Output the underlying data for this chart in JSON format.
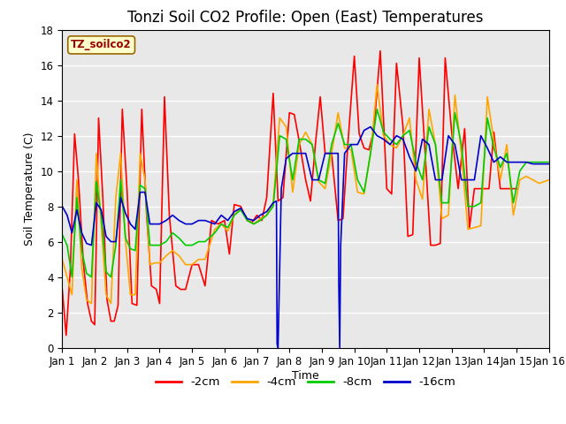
{
  "title": "Tonzi Soil CO2 Profile: Open (East) Temperatures",
  "xlabel": "Time",
  "ylabel": "Soil Temperature (C)",
  "ylim": [
    0,
    18
  ],
  "xlim": [
    0,
    15
  ],
  "xtick_labels": [
    "Jan 1",
    "Jan 2",
    "Jan 3",
    "Jan 4",
    "Jan 5",
    "Jan 6",
    "Jan 7",
    "Jan 8",
    "Jan 9",
    "Jan 10",
    "Jan 11",
    "Jan 12",
    "Jan 13",
    "Jan 14",
    "Jan 15",
    "Jan 16"
  ],
  "ytick_vals": [
    0,
    2,
    4,
    6,
    8,
    10,
    12,
    14,
    16,
    18
  ],
  "legend_title": "TZ_soilco2",
  "series": {
    "-2cm": {
      "color": "#ff0000",
      "points": [
        [
          0.0,
          3.3
        ],
        [
          0.12,
          0.7
        ],
        [
          0.25,
          4.5
        ],
        [
          0.38,
          12.1
        ],
        [
          0.5,
          9.5
        ],
        [
          0.65,
          4.8
        ],
        [
          0.78,
          2.5
        ],
        [
          0.9,
          1.5
        ],
        [
          1.0,
          1.3
        ],
        [
          1.12,
          13.0
        ],
        [
          1.25,
          8.5
        ],
        [
          1.38,
          2.7
        ],
        [
          1.5,
          1.5
        ],
        [
          1.6,
          1.5
        ],
        [
          1.72,
          2.4
        ],
        [
          1.85,
          13.5
        ],
        [
          2.0,
          8.8
        ],
        [
          2.15,
          2.5
        ],
        [
          2.3,
          2.4
        ],
        [
          2.45,
          13.5
        ],
        [
          2.6,
          7.5
        ],
        [
          2.75,
          3.5
        ],
        [
          2.9,
          3.3
        ],
        [
          3.0,
          2.5
        ],
        [
          3.15,
          14.2
        ],
        [
          3.3,
          7.5
        ],
        [
          3.5,
          3.5
        ],
        [
          3.65,
          3.3
        ],
        [
          3.8,
          3.3
        ],
        [
          4.0,
          4.7
        ],
        [
          4.2,
          4.7
        ],
        [
          4.4,
          3.5
        ],
        [
          4.6,
          7.2
        ],
        [
          4.8,
          7.0
        ],
        [
          5.0,
          7.2
        ],
        [
          5.15,
          5.3
        ],
        [
          5.3,
          8.1
        ],
        [
          5.5,
          8.0
        ],
        [
          5.7,
          7.2
        ],
        [
          5.85,
          7.1
        ],
        [
          6.0,
          7.5
        ],
        [
          6.15,
          7.2
        ],
        [
          6.3,
          8.5
        ],
        [
          6.5,
          14.4
        ],
        [
          6.65,
          8.3
        ],
        [
          6.8,
          8.5
        ],
        [
          7.0,
          13.3
        ],
        [
          7.15,
          13.2
        ],
        [
          7.3,
          11.7
        ],
        [
          7.5,
          9.5
        ],
        [
          7.65,
          8.3
        ],
        [
          7.8,
          11.5
        ],
        [
          7.95,
          14.2
        ],
        [
          8.1,
          11.0
        ],
        [
          8.3,
          11.0
        ],
        [
          8.5,
          7.2
        ],
        [
          8.65,
          7.3
        ],
        [
          8.8,
          11.5
        ],
        [
          9.0,
          16.5
        ],
        [
          9.15,
          12.1
        ],
        [
          9.3,
          11.3
        ],
        [
          9.45,
          11.2
        ],
        [
          9.6,
          12.3
        ],
        [
          9.8,
          16.8
        ],
        [
          10.0,
          9.0
        ],
        [
          10.15,
          8.7
        ],
        [
          10.3,
          16.1
        ],
        [
          10.5,
          12.5
        ],
        [
          10.65,
          6.3
        ],
        [
          10.8,
          6.4
        ],
        [
          11.0,
          16.4
        ],
        [
          11.2,
          10.5
        ],
        [
          11.35,
          5.8
        ],
        [
          11.5,
          5.8
        ],
        [
          11.65,
          5.9
        ],
        [
          11.8,
          16.4
        ],
        [
          12.0,
          12.2
        ],
        [
          12.2,
          9.0
        ],
        [
          12.4,
          12.4
        ],
        [
          12.55,
          6.8
        ],
        [
          12.7,
          9.0
        ],
        [
          12.85,
          9.0
        ],
        [
          13.0,
          9.0
        ],
        [
          13.15,
          9.0
        ],
        [
          13.3,
          12.2
        ],
        [
          13.5,
          9.0
        ],
        [
          14.0,
          9.0
        ]
      ]
    },
    "-4cm": {
      "color": "#ffa500",
      "points": [
        [
          0.0,
          5.0
        ],
        [
          0.15,
          4.0
        ],
        [
          0.3,
          3.0
        ],
        [
          0.45,
          9.5
        ],
        [
          0.6,
          4.5
        ],
        [
          0.75,
          2.7
        ],
        [
          0.9,
          2.5
        ],
        [
          1.05,
          11.0
        ],
        [
          1.2,
          7.0
        ],
        [
          1.35,
          3.0
        ],
        [
          1.5,
          2.5
        ],
        [
          1.65,
          8.5
        ],
        [
          1.8,
          11.0
        ],
        [
          1.95,
          6.0
        ],
        [
          2.1,
          3.0
        ],
        [
          2.25,
          3.0
        ],
        [
          2.4,
          11.0
        ],
        [
          2.55,
          9.5
        ],
        [
          2.7,
          4.7
        ],
        [
          2.85,
          4.8
        ],
        [
          3.0,
          4.8
        ],
        [
          3.2,
          5.2
        ],
        [
          3.4,
          5.5
        ],
        [
          3.6,
          5.2
        ],
        [
          3.8,
          4.7
        ],
        [
          4.0,
          4.7
        ],
        [
          4.2,
          5.0
        ],
        [
          4.4,
          5.0
        ],
        [
          4.7,
          6.7
        ],
        [
          4.9,
          7.0
        ],
        [
          5.1,
          6.6
        ],
        [
          5.3,
          7.5
        ],
        [
          5.5,
          7.9
        ],
        [
          5.7,
          7.2
        ],
        [
          5.9,
          7.0
        ],
        [
          6.1,
          7.3
        ],
        [
          6.3,
          7.5
        ],
        [
          6.5,
          8.2
        ],
        [
          6.7,
          13.0
        ],
        [
          6.9,
          12.5
        ],
        [
          7.1,
          8.8
        ],
        [
          7.3,
          11.5
        ],
        [
          7.5,
          12.2
        ],
        [
          7.7,
          11.5
        ],
        [
          7.9,
          9.4
        ],
        [
          8.1,
          9.0
        ],
        [
          8.3,
          11.0
        ],
        [
          8.5,
          13.3
        ],
        [
          8.7,
          11.3
        ],
        [
          8.9,
          11.2
        ],
        [
          9.1,
          8.8
        ],
        [
          9.3,
          8.7
        ],
        [
          9.5,
          11.0
        ],
        [
          9.7,
          14.9
        ],
        [
          9.9,
          12.0
        ],
        [
          10.1,
          11.5
        ],
        [
          10.3,
          11.3
        ],
        [
          10.5,
          12.0
        ],
        [
          10.7,
          13.0
        ],
        [
          10.9,
          9.5
        ],
        [
          11.1,
          8.4
        ],
        [
          11.3,
          13.5
        ],
        [
          11.5,
          11.5
        ],
        [
          11.7,
          7.3
        ],
        [
          11.9,
          7.5
        ],
        [
          12.1,
          14.3
        ],
        [
          12.3,
          11.0
        ],
        [
          12.5,
          6.7
        ],
        [
          12.7,
          6.8
        ],
        [
          12.9,
          6.9
        ],
        [
          13.1,
          14.2
        ],
        [
          13.3,
          11.7
        ],
        [
          13.5,
          9.5
        ],
        [
          13.7,
          11.5
        ],
        [
          13.9,
          7.5
        ],
        [
          14.1,
          9.5
        ],
        [
          14.3,
          9.7
        ],
        [
          14.5,
          9.5
        ],
        [
          14.7,
          9.3
        ],
        [
          15.0,
          9.5
        ]
      ]
    },
    "-8cm": {
      "color": "#00cc00",
      "points": [
        [
          0.0,
          6.4
        ],
        [
          0.15,
          5.8
        ],
        [
          0.3,
          4.0
        ],
        [
          0.45,
          8.5
        ],
        [
          0.6,
          5.5
        ],
        [
          0.75,
          4.2
        ],
        [
          0.9,
          4.0
        ],
        [
          1.05,
          9.4
        ],
        [
          1.2,
          7.5
        ],
        [
          1.35,
          4.3
        ],
        [
          1.5,
          4.0
        ],
        [
          1.65,
          5.8
        ],
        [
          1.8,
          9.5
        ],
        [
          1.95,
          6.2
        ],
        [
          2.1,
          5.6
        ],
        [
          2.25,
          5.5
        ],
        [
          2.4,
          9.2
        ],
        [
          2.55,
          9.0
        ],
        [
          2.7,
          5.8
        ],
        [
          2.85,
          5.8
        ],
        [
          3.0,
          5.8
        ],
        [
          3.2,
          6.0
        ],
        [
          3.4,
          6.5
        ],
        [
          3.6,
          6.2
        ],
        [
          3.8,
          5.8
        ],
        [
          4.0,
          5.8
        ],
        [
          4.2,
          6.0
        ],
        [
          4.4,
          6.0
        ],
        [
          4.7,
          6.5
        ],
        [
          4.9,
          7.0
        ],
        [
          5.1,
          6.8
        ],
        [
          5.3,
          7.5
        ],
        [
          5.5,
          7.8
        ],
        [
          5.7,
          7.2
        ],
        [
          5.9,
          7.0
        ],
        [
          6.1,
          7.2
        ],
        [
          6.3,
          7.5
        ],
        [
          6.5,
          8.0
        ],
        [
          6.7,
          12.0
        ],
        [
          6.9,
          11.8
        ],
        [
          7.1,
          9.5
        ],
        [
          7.3,
          11.8
        ],
        [
          7.5,
          11.8
        ],
        [
          7.7,
          11.5
        ],
        [
          7.9,
          9.5
        ],
        [
          8.1,
          9.3
        ],
        [
          8.3,
          11.5
        ],
        [
          8.5,
          12.7
        ],
        [
          8.7,
          11.5
        ],
        [
          8.9,
          11.5
        ],
        [
          9.1,
          9.5
        ],
        [
          9.3,
          8.8
        ],
        [
          9.5,
          11.0
        ],
        [
          9.7,
          13.5
        ],
        [
          9.9,
          12.2
        ],
        [
          10.1,
          11.8
        ],
        [
          10.3,
          11.5
        ],
        [
          10.5,
          12.0
        ],
        [
          10.7,
          12.3
        ],
        [
          10.9,
          10.5
        ],
        [
          11.1,
          9.5
        ],
        [
          11.3,
          12.5
        ],
        [
          11.5,
          11.5
        ],
        [
          11.7,
          8.2
        ],
        [
          11.9,
          8.2
        ],
        [
          12.1,
          13.3
        ],
        [
          12.3,
          11.5
        ],
        [
          12.5,
          8.0
        ],
        [
          12.7,
          8.0
        ],
        [
          12.9,
          8.2
        ],
        [
          13.1,
          13.0
        ],
        [
          13.3,
          11.3
        ],
        [
          13.5,
          10.2
        ],
        [
          13.7,
          11.0
        ],
        [
          13.9,
          8.2
        ],
        [
          14.1,
          10.0
        ],
        [
          14.3,
          10.5
        ],
        [
          14.5,
          10.5
        ],
        [
          14.7,
          10.5
        ],
        [
          15.0,
          10.5
        ]
      ]
    },
    "-16cm": {
      "color": "#0000cc",
      "points": [
        [
          0.0,
          8.0
        ],
        [
          0.15,
          7.5
        ],
        [
          0.3,
          6.5
        ],
        [
          0.45,
          7.8
        ],
        [
          0.6,
          6.5
        ],
        [
          0.75,
          5.9
        ],
        [
          0.9,
          5.8
        ],
        [
          1.05,
          8.2
        ],
        [
          1.2,
          7.8
        ],
        [
          1.35,
          6.3
        ],
        [
          1.5,
          6.0
        ],
        [
          1.65,
          6.0
        ],
        [
          1.8,
          8.5
        ],
        [
          1.95,
          7.6
        ],
        [
          2.1,
          7.0
        ],
        [
          2.25,
          6.7
        ],
        [
          2.4,
          8.8
        ],
        [
          2.55,
          8.8
        ],
        [
          2.7,
          7.0
        ],
        [
          2.85,
          7.0
        ],
        [
          3.0,
          7.0
        ],
        [
          3.2,
          7.2
        ],
        [
          3.4,
          7.5
        ],
        [
          3.6,
          7.2
        ],
        [
          3.8,
          7.0
        ],
        [
          4.0,
          7.0
        ],
        [
          4.2,
          7.2
        ],
        [
          4.4,
          7.2
        ],
        [
          4.7,
          7.0
        ],
        [
          4.9,
          7.5
        ],
        [
          5.1,
          7.2
        ],
        [
          5.3,
          7.7
        ],
        [
          5.5,
          7.9
        ],
        [
          5.7,
          7.3
        ],
        [
          5.9,
          7.2
        ],
        [
          6.1,
          7.5
        ],
        [
          6.3,
          7.7
        ],
        [
          6.5,
          8.2
        ],
        [
          6.5,
          8.2
        ],
        [
          6.6,
          8.3
        ],
        [
          6.62,
          0.2
        ],
        [
          6.65,
          0.0
        ],
        [
          6.75,
          9.0
        ],
        [
          6.9,
          10.7
        ],
        [
          7.1,
          11.0
        ],
        [
          7.3,
          11.0
        ],
        [
          7.5,
          11.0
        ],
        [
          7.7,
          9.5
        ],
        [
          7.9,
          9.5
        ],
        [
          8.1,
          11.0
        ],
        [
          8.3,
          11.0
        ],
        [
          8.5,
          11.0
        ],
        [
          8.52,
          3.7
        ],
        [
          8.55,
          0.0
        ],
        [
          8.58,
          5.8
        ],
        [
          8.7,
          11.0
        ],
        [
          8.9,
          11.5
        ],
        [
          9.1,
          11.5
        ],
        [
          9.3,
          12.3
        ],
        [
          9.5,
          12.5
        ],
        [
          9.7,
          12.0
        ],
        [
          9.9,
          11.8
        ],
        [
          10.1,
          11.5
        ],
        [
          10.3,
          12.0
        ],
        [
          10.5,
          11.8
        ],
        [
          10.7,
          10.8
        ],
        [
          10.9,
          10.0
        ],
        [
          11.1,
          11.8
        ],
        [
          11.3,
          11.5
        ],
        [
          11.5,
          9.5
        ],
        [
          11.7,
          9.5
        ],
        [
          11.9,
          12.0
        ],
        [
          12.1,
          11.5
        ],
        [
          12.3,
          9.5
        ],
        [
          12.5,
          9.5
        ],
        [
          12.7,
          9.5
        ],
        [
          12.9,
          12.0
        ],
        [
          13.1,
          11.3
        ],
        [
          13.3,
          10.5
        ],
        [
          13.5,
          10.8
        ],
        [
          13.7,
          10.5
        ],
        [
          13.9,
          10.5
        ],
        [
          14.1,
          10.5
        ],
        [
          14.3,
          10.5
        ],
        [
          14.5,
          10.4
        ],
        [
          14.7,
          10.4
        ],
        [
          15.0,
          10.4
        ]
      ]
    }
  },
  "background_color": "#ffffff",
  "plot_bg_color": "#e8e8e8",
  "grid_color": "#ffffff",
  "legend_bg": "#ffffcc",
  "legend_border": "#cc0000",
  "title_fontsize": 12,
  "label_fontsize": 9,
  "tick_fontsize": 8.5
}
